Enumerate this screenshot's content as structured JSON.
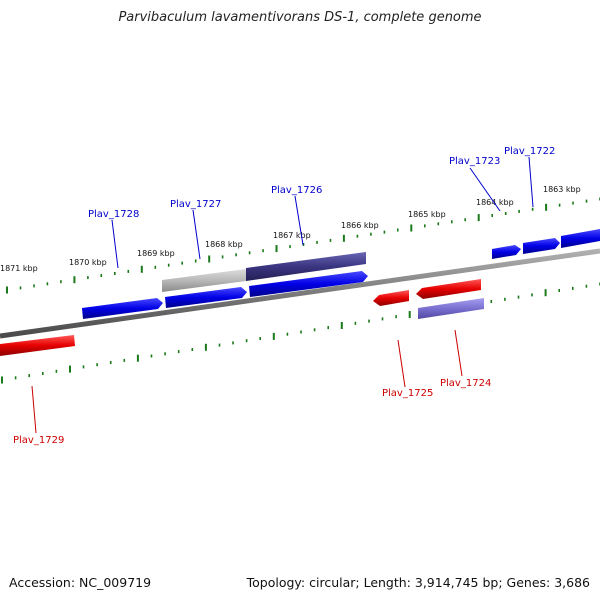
{
  "title": "Parvibaculum lavamentivorans DS-1, complete genome",
  "accession": "Accession: NC_009719",
  "summary": "Topology: circular; Length: 3,914,745 bp; Genes: 3,686",
  "scale_labels": [
    "1871 kbp",
    "1870 kbp",
    "1869 kbp",
    "1868 kbp",
    "1867 kbp",
    "1866 kbp",
    "1865 kbp",
    "1864 kbp",
    "1863 kbp"
  ],
  "genes": [
    {
      "label": "Plav_1722",
      "strand": "+"
    },
    {
      "label": "Plav_1723",
      "strand": "+"
    },
    {
      "label": "Plav_1724",
      "strand": "-"
    },
    {
      "label": "Plav_1725",
      "strand": "-"
    },
    {
      "label": "Plav_1726",
      "strand": "+"
    },
    {
      "label": "Plav_1727",
      "strand": "+"
    },
    {
      "label": "Plav_1728",
      "strand": "+"
    },
    {
      "label": "Plav_1729",
      "strand": "-"
    }
  ],
  "colors": {
    "plus_strand": "#0000e0",
    "minus_strand": "#e00000",
    "highlight": "#3a3580",
    "highlight_light": "#7a70d0",
    "selected_grey": "#b8b8b8",
    "backbone": "#8a8a8a",
    "tick": "#1a7a1a"
  }
}
